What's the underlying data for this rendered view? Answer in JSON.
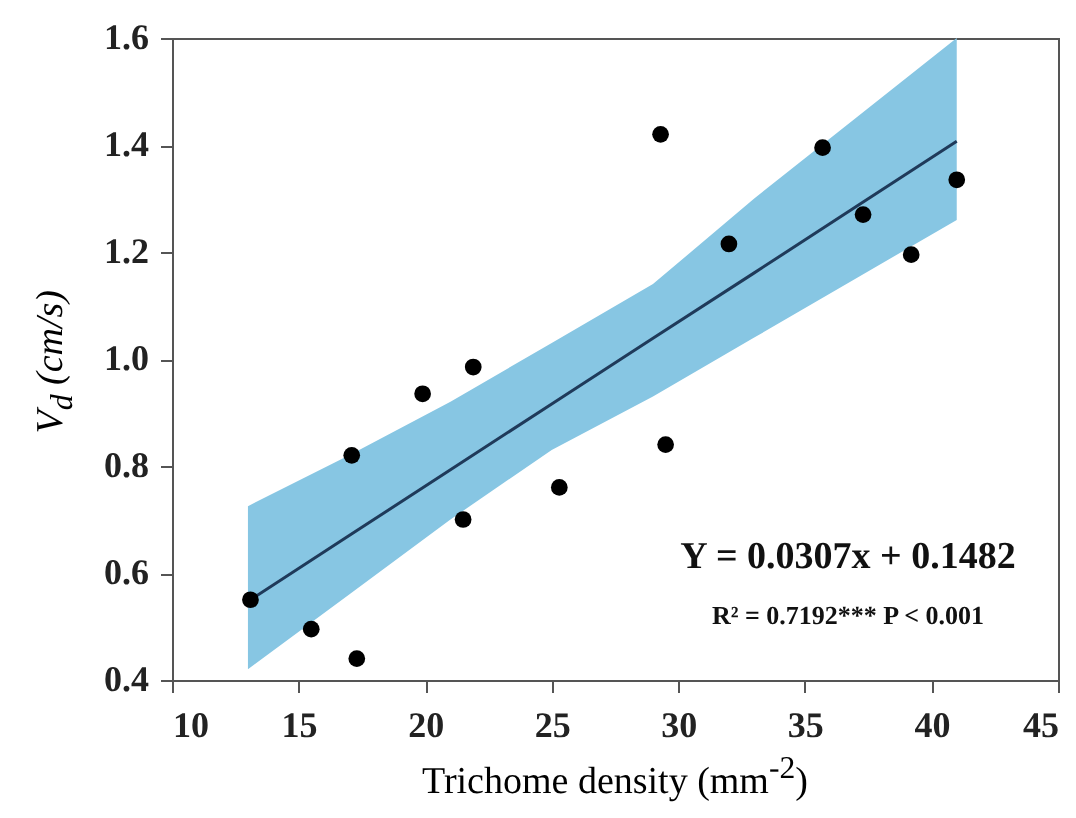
{
  "chart_data": {
    "type": "scatter",
    "xlabel": "Trichome density (mm$^{-2}$)",
    "ylabel": "V$_{d}$ (cm/s)",
    "xlim": [
      10,
      45
    ],
    "xticks": [
      10,
      15,
      20,
      25,
      30,
      35,
      40,
      45
    ],
    "ylim": [
      0.4,
      1.6
    ],
    "yticks": [
      0.4,
      0.6,
      0.8,
      {
        "value": 1,
        "label": "1.0"
      },
      1.2,
      1.4,
      1.6
    ],
    "grid": false,
    "series": [
      {
        "type": "line",
        "color": "#1f3a5a",
        "marker": "none",
        "x": [
          13,
          17,
          21,
          25,
          29,
          33,
          37,
          41
        ],
        "values": [
          0.547,
          0.67,
          0.793,
          0.916,
          1.039,
          1.161,
          1.284,
          1.407
        ],
        "lower": [
          0.42,
          0.56,
          0.7,
          0.83,
          0.93,
          1.04,
          1.15,
          1.26
        ],
        "upper": [
          0.725,
          0.82,
          0.92,
          1.03,
          1.14,
          1.3,
          1.45,
          1.6
        ]
      },
      {
        "color": "#000000",
        "marker": "circle",
        "x": [
          13.1,
          15.5,
          17.1,
          17.3,
          19.9,
          21.5,
          21.9,
          25.3,
          29.3,
          29.5,
          32.0,
          35.7,
          37.3,
          39.2,
          41.0
        ],
        "values": [
          0.55,
          0.495,
          0.82,
          0.44,
          0.935,
          0.7,
          0.985,
          0.76,
          1.42,
          0.84,
          1.215,
          1.395,
          1.27,
          1.195,
          1.335
        ]
      }
    ],
    "annotations": [
      "Y = 0.0307x + 0.1482",
      "R² = 0.7192***  P < 0.001"
    ]
  }
}
